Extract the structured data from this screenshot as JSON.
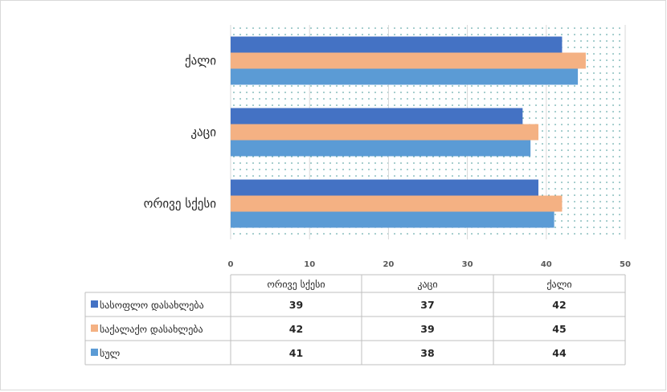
{
  "chart_data": {
    "type": "bar",
    "orientation": "horizontal",
    "categories": [
      "ორივე სქესი",
      "კაცი",
      "ქალი"
    ],
    "series": [
      {
        "name": "სასოფლო დასახლება",
        "values": [
          39,
          37,
          42
        ],
        "color": "#4472C4"
      },
      {
        "name": "საქალაქო დასახლება",
        "values": [
          42,
          39,
          45
        ],
        "color": "#F4B183"
      },
      {
        "name": "სულ",
        "values": [
          41,
          38,
          44
        ],
        "color": "#5B9BD5"
      }
    ],
    "xlim": [
      0,
      50
    ],
    "xticks": [
      "0",
      "10",
      "20",
      "30",
      "40",
      "50"
    ],
    "grid": true,
    "plot_background": "dotted teal pattern",
    "legend": "data table below chart"
  }
}
